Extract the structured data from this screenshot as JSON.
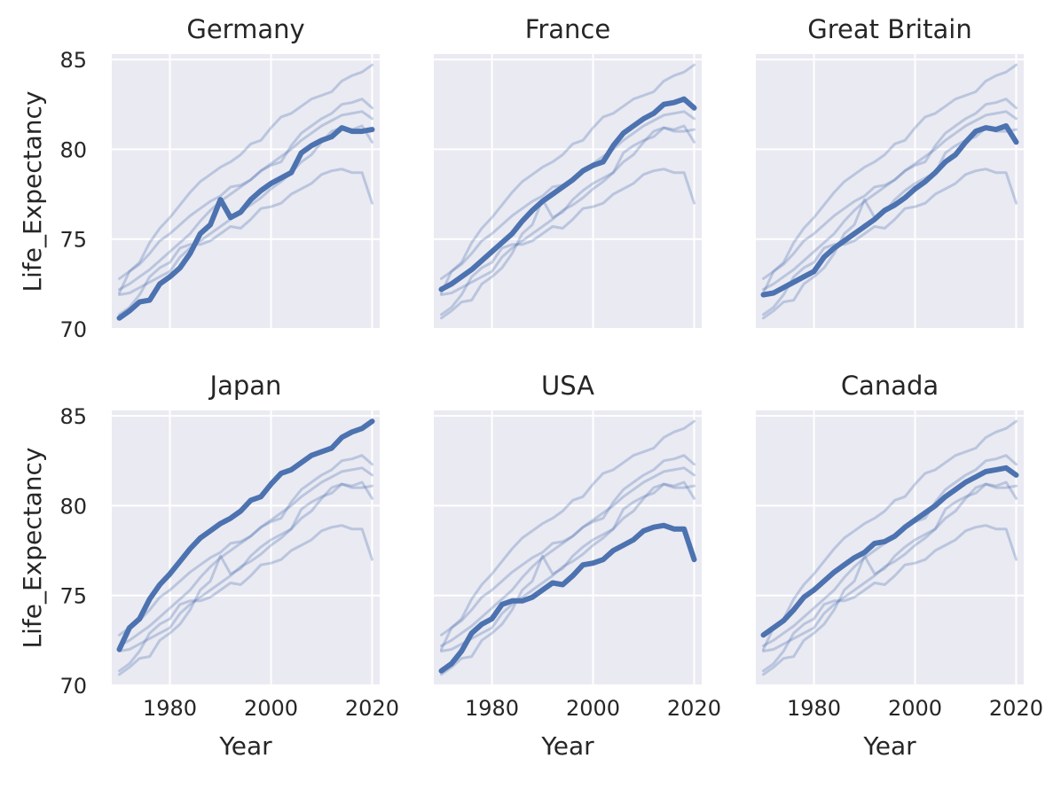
{
  "chart_data": {
    "type": "line",
    "layout": "facet-grid",
    "grid": true,
    "sharex": true,
    "sharey": true,
    "xlabel": "Year",
    "ylabel": "Life_Expectancy",
    "xlim": [
      1968.5,
      2021.5
    ],
    "ylim": [
      70,
      85.3
    ],
    "xticks": [
      1980,
      2000,
      2020
    ],
    "yticks": [
      70,
      75,
      80,
      85
    ],
    "highlight_color": "#4c72b0",
    "background_series_color": "#4c72b0",
    "panel_background": "#eaeaf2",
    "grid_color": "#ffffff",
    "facets": [
      {
        "title": "Germany",
        "series": "Germany"
      },
      {
        "title": "France",
        "series": "France"
      },
      {
        "title": "Great Britain",
        "series": "Great Britain"
      },
      {
        "title": "Japan",
        "series": "Japan"
      },
      {
        "title": "USA",
        "series": "USA"
      },
      {
        "title": "Canada",
        "series": "Canada"
      }
    ],
    "series": [
      {
        "name": "Germany",
        "x": [
          1970,
          1972,
          1974,
          1976,
          1978,
          1980,
          1982,
          1984,
          1986,
          1988,
          1990,
          1992,
          1994,
          1996,
          1998,
          2000,
          2002,
          2004,
          2006,
          2008,
          2010,
          2012,
          2014,
          2016,
          2018,
          2020
        ],
        "y": [
          70.6,
          71.0,
          71.5,
          71.6,
          72.5,
          72.9,
          73.4,
          74.2,
          75.3,
          75.8,
          77.2,
          76.2,
          76.5,
          77.2,
          77.7,
          78.1,
          78.4,
          78.7,
          79.8,
          80.2,
          80.5,
          80.7,
          81.2,
          81.0,
          81.0,
          81.1
        ]
      },
      {
        "name": "France",
        "x": [
          1970,
          1972,
          1974,
          1976,
          1978,
          1980,
          1982,
          1984,
          1986,
          1988,
          1990,
          1992,
          1994,
          1996,
          1998,
          2000,
          2002,
          2004,
          2006,
          2008,
          2010,
          2012,
          2014,
          2016,
          2018,
          2020
        ],
        "y": [
          72.2,
          72.5,
          72.9,
          73.3,
          73.8,
          74.3,
          74.8,
          75.3,
          76.0,
          76.6,
          77.1,
          77.5,
          77.9,
          78.3,
          78.8,
          79.1,
          79.3,
          80.2,
          80.9,
          81.3,
          81.7,
          82.0,
          82.5,
          82.6,
          82.8,
          82.3
        ]
      },
      {
        "name": "Great Britain",
        "x": [
          1970,
          1972,
          1974,
          1976,
          1978,
          1980,
          1982,
          1984,
          1986,
          1988,
          1990,
          1992,
          1994,
          1996,
          1998,
          2000,
          2002,
          2004,
          2006,
          2008,
          2010,
          2012,
          2014,
          2016,
          2018,
          2020
        ],
        "y": [
          71.9,
          72.0,
          72.3,
          72.6,
          72.9,
          73.2,
          74.0,
          74.5,
          74.9,
          75.3,
          75.7,
          76.1,
          76.6,
          76.9,
          77.3,
          77.8,
          78.2,
          78.7,
          79.3,
          79.7,
          80.4,
          81.0,
          81.2,
          81.1,
          81.3,
          80.4
        ]
      },
      {
        "name": "Japan",
        "x": [
          1970,
          1972,
          1974,
          1976,
          1978,
          1980,
          1982,
          1984,
          1986,
          1988,
          1990,
          1992,
          1994,
          1996,
          1998,
          2000,
          2002,
          2004,
          2006,
          2008,
          2010,
          2012,
          2014,
          2016,
          2018,
          2020
        ],
        "y": [
          72.0,
          73.2,
          73.7,
          74.8,
          75.6,
          76.2,
          76.9,
          77.6,
          78.2,
          78.6,
          79.0,
          79.3,
          79.7,
          80.3,
          80.5,
          81.2,
          81.8,
          82.0,
          82.4,
          82.8,
          83.0,
          83.2,
          83.8,
          84.1,
          84.3,
          84.7
        ]
      },
      {
        "name": "USA",
        "x": [
          1970,
          1972,
          1974,
          1976,
          1978,
          1980,
          1982,
          1984,
          1986,
          1988,
          1990,
          1992,
          1994,
          1996,
          1998,
          2000,
          2002,
          2004,
          2006,
          2008,
          2010,
          2012,
          2014,
          2016,
          2018,
          2020
        ],
        "y": [
          70.8,
          71.2,
          71.9,
          72.9,
          73.4,
          73.7,
          74.5,
          74.7,
          74.7,
          74.9,
          75.3,
          75.7,
          75.6,
          76.1,
          76.7,
          76.8,
          77.0,
          77.5,
          77.8,
          78.1,
          78.6,
          78.8,
          78.9,
          78.7,
          78.7,
          77.0
        ]
      },
      {
        "name": "Canada",
        "x": [
          1970,
          1972,
          1974,
          1976,
          1978,
          1980,
          1982,
          1984,
          1986,
          1988,
          1990,
          1992,
          1994,
          1996,
          1998,
          2000,
          2002,
          2004,
          2006,
          2008,
          2010,
          2012,
          2014,
          2016,
          2018,
          2020
        ],
        "y": [
          72.8,
          73.2,
          73.6,
          74.2,
          74.9,
          75.3,
          75.8,
          76.3,
          76.7,
          77.1,
          77.4,
          77.9,
          78.0,
          78.3,
          78.8,
          79.2,
          79.6,
          80.0,
          80.5,
          80.9,
          81.3,
          81.6,
          81.9,
          82.0,
          82.1,
          81.7
        ]
      }
    ]
  }
}
